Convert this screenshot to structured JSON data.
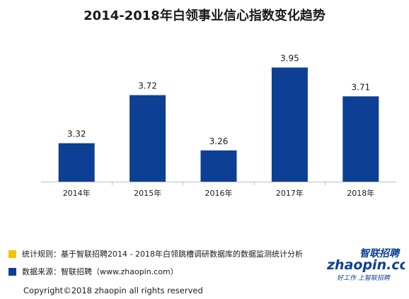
{
  "chart_title": "2014-2018年白领事业信心指数变化趋势",
  "chart_data": {
    "type": "bar",
    "title": "2014-2018年白领事业信心指数变化趋势",
    "categories": [
      "2014年",
      "2015年",
      "2016年",
      "2017年",
      "2018年"
    ],
    "values": [
      3.32,
      3.72,
      3.26,
      3.95,
      3.71
    ],
    "value_labels": [
      "3.32",
      "3.72",
      "3.26",
      "3.95",
      "3.71"
    ],
    "xlabel": "",
    "ylabel": "",
    "ylim": [
      3.0,
      4.1
    ],
    "grid": false,
    "bar_color": "#0d3f94"
  },
  "notes": {
    "rule_text": "统计规则：基于智联招聘2014 - 2018年白领跳槽调研数据库的数据监测统计分析",
    "rule_color": "#f5c400",
    "source_text": "数据来源：智联招聘（www.zhaopin.com）",
    "source_color": "#0d3f94"
  },
  "copyright": "Copyright©2018 zhaopin all rights reserved",
  "logo": {
    "brand_cn": "智联招聘",
    "brand_en": "zhaopin.com",
    "slogan": "好工作 上智联招聘"
  }
}
